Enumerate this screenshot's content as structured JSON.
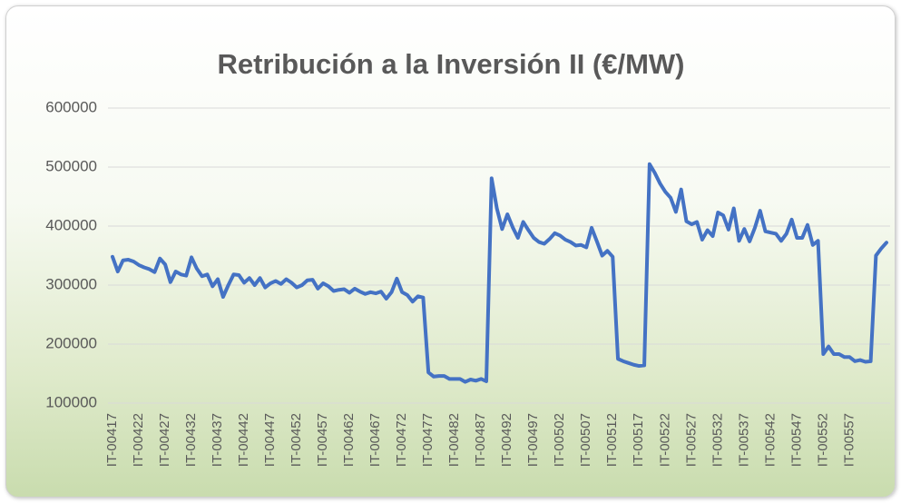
{
  "chart_data": {
    "type": "line",
    "title": "Retribución a la Inversión II (€/MW)",
    "categories": [
      "IT-00417",
      null,
      null,
      null,
      null,
      "IT-00422",
      null,
      null,
      null,
      null,
      "IT-00427",
      null,
      null,
      null,
      null,
      "IT-00432",
      null,
      null,
      null,
      null,
      "IT-00437",
      null,
      null,
      null,
      null,
      "IT-00442",
      null,
      null,
      null,
      null,
      "IT-00447",
      null,
      null,
      null,
      null,
      "IT-00452",
      null,
      null,
      null,
      null,
      "IT-00457",
      null,
      null,
      null,
      null,
      "IT-00462",
      null,
      null,
      null,
      null,
      "IT-00467",
      null,
      null,
      null,
      null,
      "IT-00472",
      null,
      null,
      null,
      null,
      "IT-00477",
      null,
      null,
      null,
      null,
      "IT-00482",
      null,
      null,
      null,
      null,
      "IT-00487",
      null,
      null,
      null,
      null,
      "IT-00492",
      null,
      null,
      null,
      null,
      "IT-00497",
      null,
      null,
      null,
      null,
      "IT-00502",
      null,
      null,
      null,
      null,
      "IT-00507",
      null,
      null,
      null,
      null,
      "IT-00512",
      null,
      null,
      null,
      null,
      "IT-00517",
      null,
      null,
      null,
      null,
      "IT-00522",
      null,
      null,
      null,
      null,
      "IT-00527",
      null,
      null,
      null,
      null,
      "IT-00532",
      null,
      null,
      null,
      null,
      "IT-00537",
      null,
      null,
      null,
      null,
      "IT-00542",
      null,
      null,
      null,
      null,
      "IT-00547",
      null,
      null,
      null,
      null,
      "IT-00552",
      null,
      null,
      null,
      null,
      "IT-00557",
      null,
      null,
      null,
      null,
      null,
      null,
      null
    ],
    "series": [
      {
        "color": "#4472c4",
        "values": [
          348000,
          323000,
          342000,
          343000,
          340000,
          334000,
          330000,
          327000,
          322000,
          345000,
          335000,
          305000,
          323000,
          318000,
          316000,
          347000,
          328000,
          315000,
          318000,
          298000,
          310000,
          280000,
          300000,
          318000,
          317000,
          304000,
          312000,
          300000,
          312000,
          296000,
          303000,
          307000,
          302000,
          310000,
          304000,
          296000,
          300000,
          308000,
          309000,
          294000,
          303000,
          298000,
          290000,
          292000,
          293000,
          287000,
          294000,
          289000,
          285000,
          288000,
          286000,
          289000,
          277000,
          288000,
          311000,
          288000,
          283000,
          272000,
          281000,
          279000,
          152000,
          145000,
          146000,
          146000,
          141000,
          141000,
          141000,
          136000,
          140000,
          138000,
          141000,
          137000,
          481000,
          430000,
          395000,
          420000,
          398000,
          380000,
          407000,
          393000,
          380000,
          373000,
          370000,
          378000,
          388000,
          384000,
          377000,
          373000,
          367000,
          368000,
          364000,
          397000,
          374000,
          350000,
          358000,
          348000,
          175000,
          171000,
          168000,
          165000,
          163000,
          164000,
          505000,
          490000,
          472000,
          458000,
          448000,
          424000,
          462000,
          408000,
          403000,
          407000,
          377000,
          393000,
          383000,
          423000,
          418000,
          394000,
          430000,
          375000,
          395000,
          374000,
          397000,
          426000,
          391000,
          389000,
          387000,
          375000,
          387000,
          411000,
          380000,
          380000,
          402000,
          368000,
          375000,
          183000,
          196000,
          183000,
          183000,
          178000,
          178000,
          171000,
          173000,
          170000,
          171000,
          350000,
          362000,
          372000
        ]
      }
    ],
    "ylim": [
      100000,
      600000
    ],
    "yticks": [
      100000,
      200000,
      300000,
      400000,
      500000,
      600000
    ],
    "grid": true
  }
}
